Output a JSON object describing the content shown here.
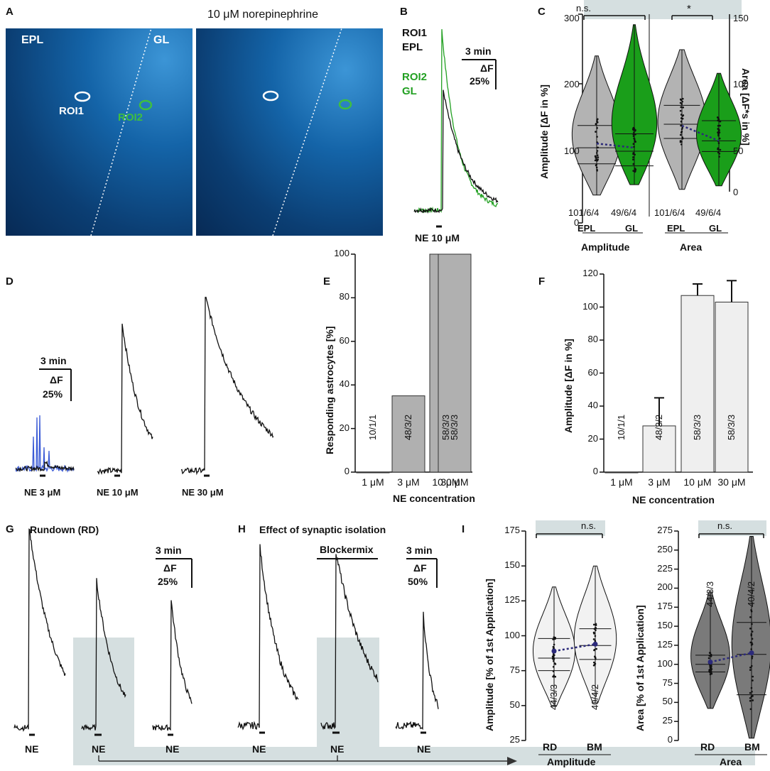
{
  "panels": {
    "A": "A",
    "B": "B",
    "C": "C",
    "D": "D",
    "E": "E",
    "F": "F",
    "G": "G",
    "H": "H",
    "I": "I"
  },
  "colors": {
    "gray_violin": "#b3b3b3",
    "green_violin": "#1a9e1a",
    "trace_black": "#111111",
    "trace_green": "#22a022",
    "trace_blue": "#3b5bd6",
    "shade": "#d5dfe0",
    "dotline": "#2c2a7a",
    "bar_gray": "#b0b0b0",
    "bar_light": "#efefef",
    "dark_violin": "#7a7a7a",
    "light_violin": "#f2f2f2"
  },
  "A": {
    "label_epl": "EPL",
    "label_gl": "GL",
    "title_right": "10 μM norepinephrine",
    "roi1": "ROI1",
    "roi2": "ROI2"
  },
  "B": {
    "roi1": "ROI1",
    "epl": "EPL",
    "roi2": "ROI2",
    "gl": "GL",
    "scale_time": "3 min",
    "scale_df": "ΔF",
    "scale_pct": "25%",
    "stim": "NE 10 μM"
  },
  "D": {
    "scale_time": "3 min",
    "scale_df": "ΔF",
    "scale_pct": "25%",
    "stims": [
      "NE 3 μM",
      "NE 10 μM",
      "NE 30 μM"
    ]
  },
  "G": {
    "title": "Rundown (RD)",
    "scale_time": "3 min",
    "scale_df": "ΔF",
    "scale_pct": "25%",
    "stim": "NE"
  },
  "H": {
    "title": "Effect of synaptic isolation",
    "blocker": "Blockermix",
    "scale_time": "3 min",
    "scale_df": "ΔF",
    "scale_pct": "50%",
    "stim": "NE"
  },
  "chart_data": [
    {
      "panel": "C",
      "type": "violin",
      "ylabel_left": "Amplitude [ΔF in %]",
      "ylabel_right": "Area [ΔF*s in %]",
      "ylim_left": [
        0,
        300
      ],
      "ylim_right": [
        0,
        150
      ],
      "yticks_left": [
        "0",
        "100",
        "200",
        "300"
      ],
      "yticks_right": [
        "0",
        "50",
        "100",
        "150"
      ],
      "groups": [
        {
          "name": "EPL",
          "median": 108,
          "q1": 85,
          "q3": 140,
          "n": "101/6/4"
        },
        {
          "name": "GL",
          "median": 103,
          "q1": 82,
          "q3": 128,
          "n": "49/6/4"
        },
        {
          "name": "EPL",
          "median": 57,
          "q1": 45,
          "q3": 73,
          "n": "101/6/4"
        },
        {
          "name": "GL",
          "median": 43,
          "q1": 34,
          "q3": 60,
          "n": "49/6/4"
        }
      ],
      "group_labels": [
        "Amplitude",
        "Area"
      ],
      "significance": [
        "n.s.",
        "*"
      ]
    },
    {
      "panel": "E",
      "type": "bar",
      "categories": [
        "1 μM",
        "3 μM",
        "10 μM",
        "30 μM"
      ],
      "values": [
        0,
        35,
        100,
        100
      ],
      "labels": [
        "10/1/1",
        "48/3/2",
        "58/3/3",
        "58/3/3"
      ],
      "ylabel": "Responding astrocytes [%]",
      "xlabel": "NE concentration",
      "ylim": [
        0,
        100
      ],
      "yticks": [
        "0",
        "20",
        "40",
        "60",
        "80",
        "100"
      ]
    },
    {
      "panel": "F",
      "type": "bar",
      "categories": [
        "1 μM",
        "3 μM",
        "10 μM",
        "30 μM"
      ],
      "values": [
        0,
        28,
        107,
        103
      ],
      "errors": [
        0,
        17,
        7,
        13
      ],
      "labels": [
        "10/1/1",
        "48/3/2",
        "58/3/3",
        "58/3/3"
      ],
      "ylabel": "Amplitude [ΔF in %]",
      "xlabel": "NE concentration",
      "ylim": [
        0,
        120
      ],
      "yticks": [
        "0",
        "20",
        "40",
        "60",
        "80",
        "100",
        "120"
      ]
    },
    {
      "panel": "I-left",
      "type": "violin",
      "ylabel": "Amplitude [% of 1st Application]",
      "ylim": [
        25,
        175
      ],
      "yticks": [
        "25",
        "50",
        "75",
        "100",
        "125",
        "150",
        "175"
      ],
      "groups": [
        {
          "name": "RD",
          "median": 84,
          "q1": 75,
          "q3": 98,
          "mean": 89,
          "n": "44/3/3"
        },
        {
          "name": "BM",
          "median": 93,
          "q1": 83,
          "q3": 105,
          "mean": 94,
          "n": "40/4/2"
        }
      ],
      "group_label": "Amplitude",
      "significance": "n.s."
    },
    {
      "panel": "I-right",
      "type": "violin",
      "ylabel": "Area [% of 1st Application]",
      "ylim": [
        0,
        275
      ],
      "yticks": [
        "0",
        "25",
        "50",
        "75",
        "100",
        "125",
        "150",
        "175",
        "200",
        "225",
        "250",
        "275"
      ],
      "groups": [
        {
          "name": "RD",
          "median": 100,
          "q1": 90,
          "q3": 112,
          "mean": 103,
          "n": "44/3/3"
        },
        {
          "name": "BM",
          "median": 113,
          "q1": 60,
          "q3": 155,
          "mean": 115,
          "n": "40/4/2"
        }
      ],
      "group_label": "Area",
      "significance": "n.s."
    }
  ]
}
